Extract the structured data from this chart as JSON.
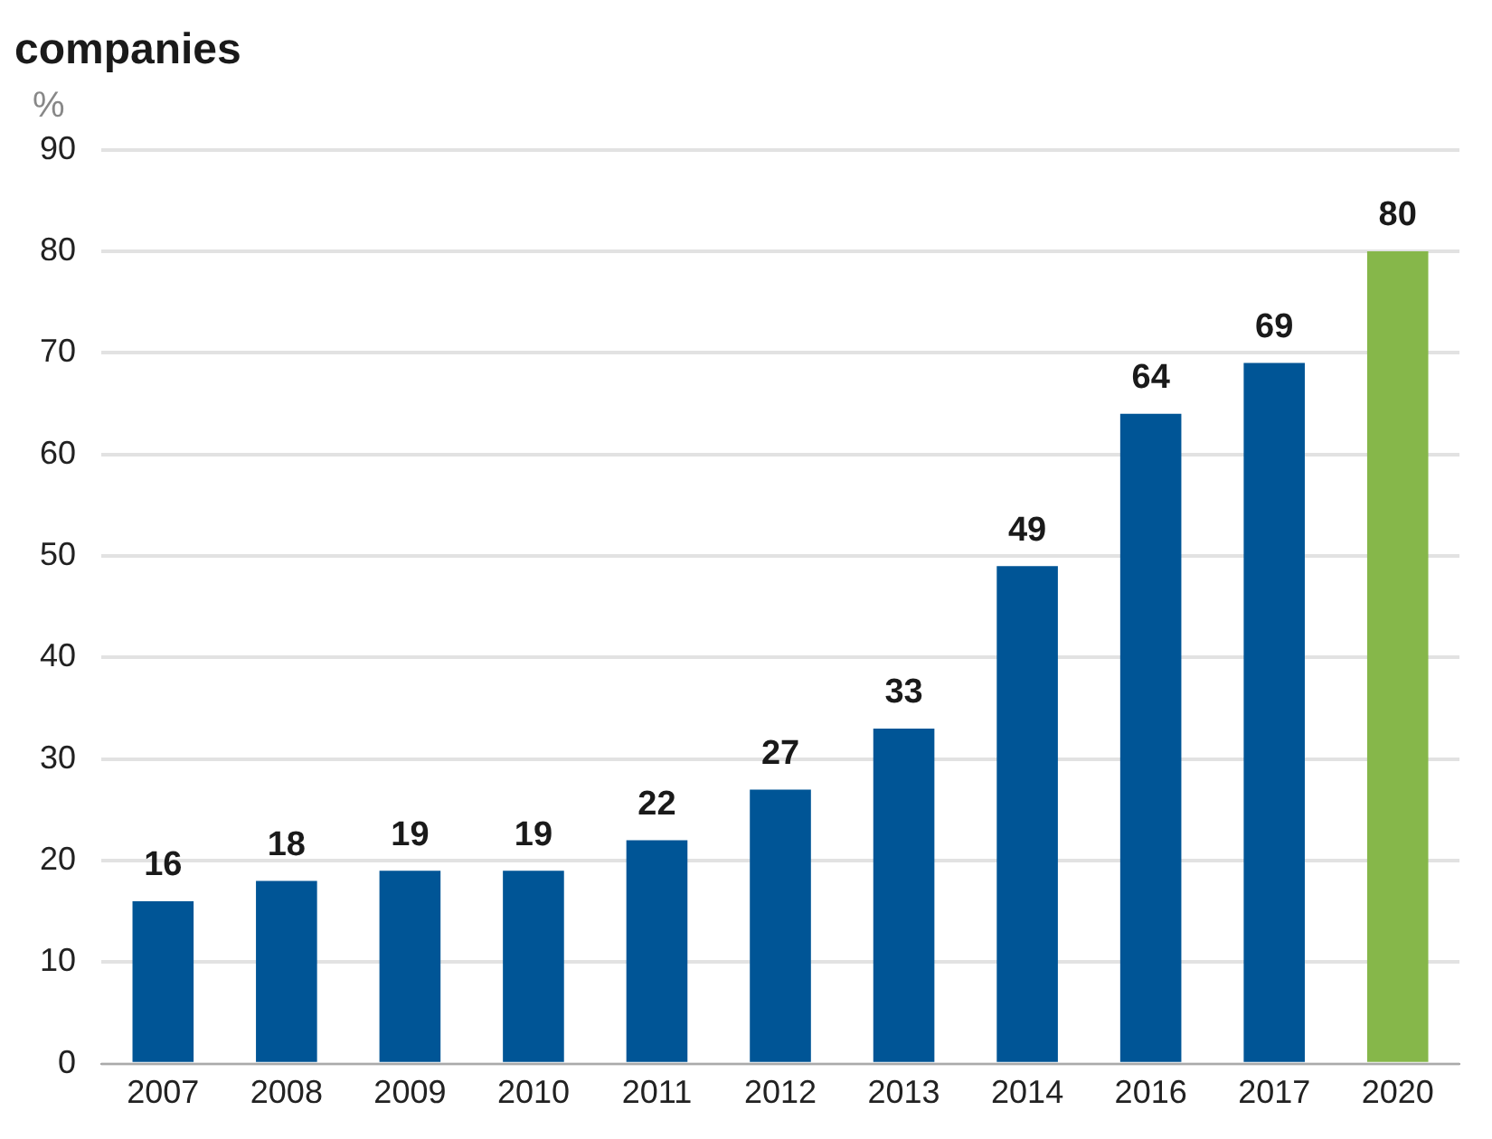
{
  "chart_data": {
    "type": "bar",
    "title": "companies",
    "ylabel": "%",
    "categories": [
      "2007",
      "2008",
      "2009",
      "2010",
      "2011",
      "2012",
      "2013",
      "2014",
      "2016",
      "2017",
      "2020"
    ],
    "values": [
      16,
      18,
      19,
      19,
      22,
      27,
      33,
      49,
      64,
      69,
      80
    ],
    "colors": [
      "#005596",
      "#005596",
      "#005596",
      "#005596",
      "#005596",
      "#005596",
      "#005596",
      "#005596",
      "#005596",
      "#005596",
      "#86b74a"
    ],
    "ylim": [
      0,
      90
    ],
    "yticks": [
      0,
      10,
      20,
      30,
      40,
      50,
      60,
      70,
      80,
      90
    ],
    "grid": "y",
    "data_labels": true,
    "legend": false
  }
}
